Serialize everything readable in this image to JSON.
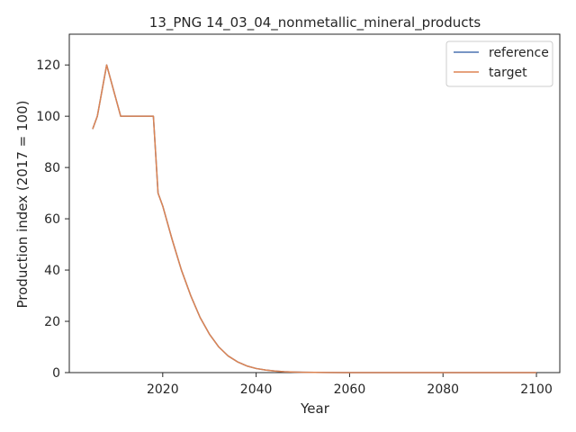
{
  "chart_data": {
    "type": "line",
    "title": "13_PNG 14_03_04_nonmetallic_mineral_products",
    "xlabel": "Year",
    "ylabel": "Production index (2017 = 100)",
    "xlim": [
      2000,
      2105
    ],
    "ylim": [
      0,
      132
    ],
    "xticks": [
      2020,
      2040,
      2060,
      2080,
      2100
    ],
    "yticks": [
      0,
      20,
      40,
      60,
      80,
      100,
      120
    ],
    "grid": false,
    "legend_position": "top-right",
    "series": [
      {
        "name": "reference",
        "color": "#4c72b0",
        "x": [
          2005,
          2006,
          2008,
          2011,
          2018,
          2019,
          2020,
          2022,
          2024,
          2026,
          2028,
          2030,
          2032,
          2034,
          2036,
          2038,
          2040,
          2042,
          2044,
          2046,
          2048,
          2050,
          2055,
          2060,
          2070,
          2080,
          2090,
          2100
        ],
        "y": [
          95,
          100,
          120,
          100,
          100,
          70,
          65,
          52,
          40,
          30,
          21.5,
          15,
          10,
          6.5,
          4.2,
          2.6,
          1.6,
          1.0,
          0.6,
          0.35,
          0.2,
          0.12,
          0.04,
          0.01,
          0,
          0,
          0,
          0
        ]
      },
      {
        "name": "target",
        "color": "#dd8452",
        "x": [
          2005,
          2006,
          2008,
          2011,
          2018,
          2019,
          2020,
          2022,
          2024,
          2026,
          2028,
          2030,
          2032,
          2034,
          2036,
          2038,
          2040,
          2042,
          2044,
          2046,
          2048,
          2050,
          2055,
          2060,
          2070,
          2080,
          2090,
          2100
        ],
        "y": [
          95,
          100,
          120,
          100,
          100,
          70,
          65,
          52,
          40,
          30,
          21.5,
          15,
          10,
          6.5,
          4.2,
          2.6,
          1.6,
          1.0,
          0.6,
          0.35,
          0.2,
          0.12,
          0.04,
          0.01,
          0,
          0,
          0,
          0
        ]
      }
    ]
  }
}
